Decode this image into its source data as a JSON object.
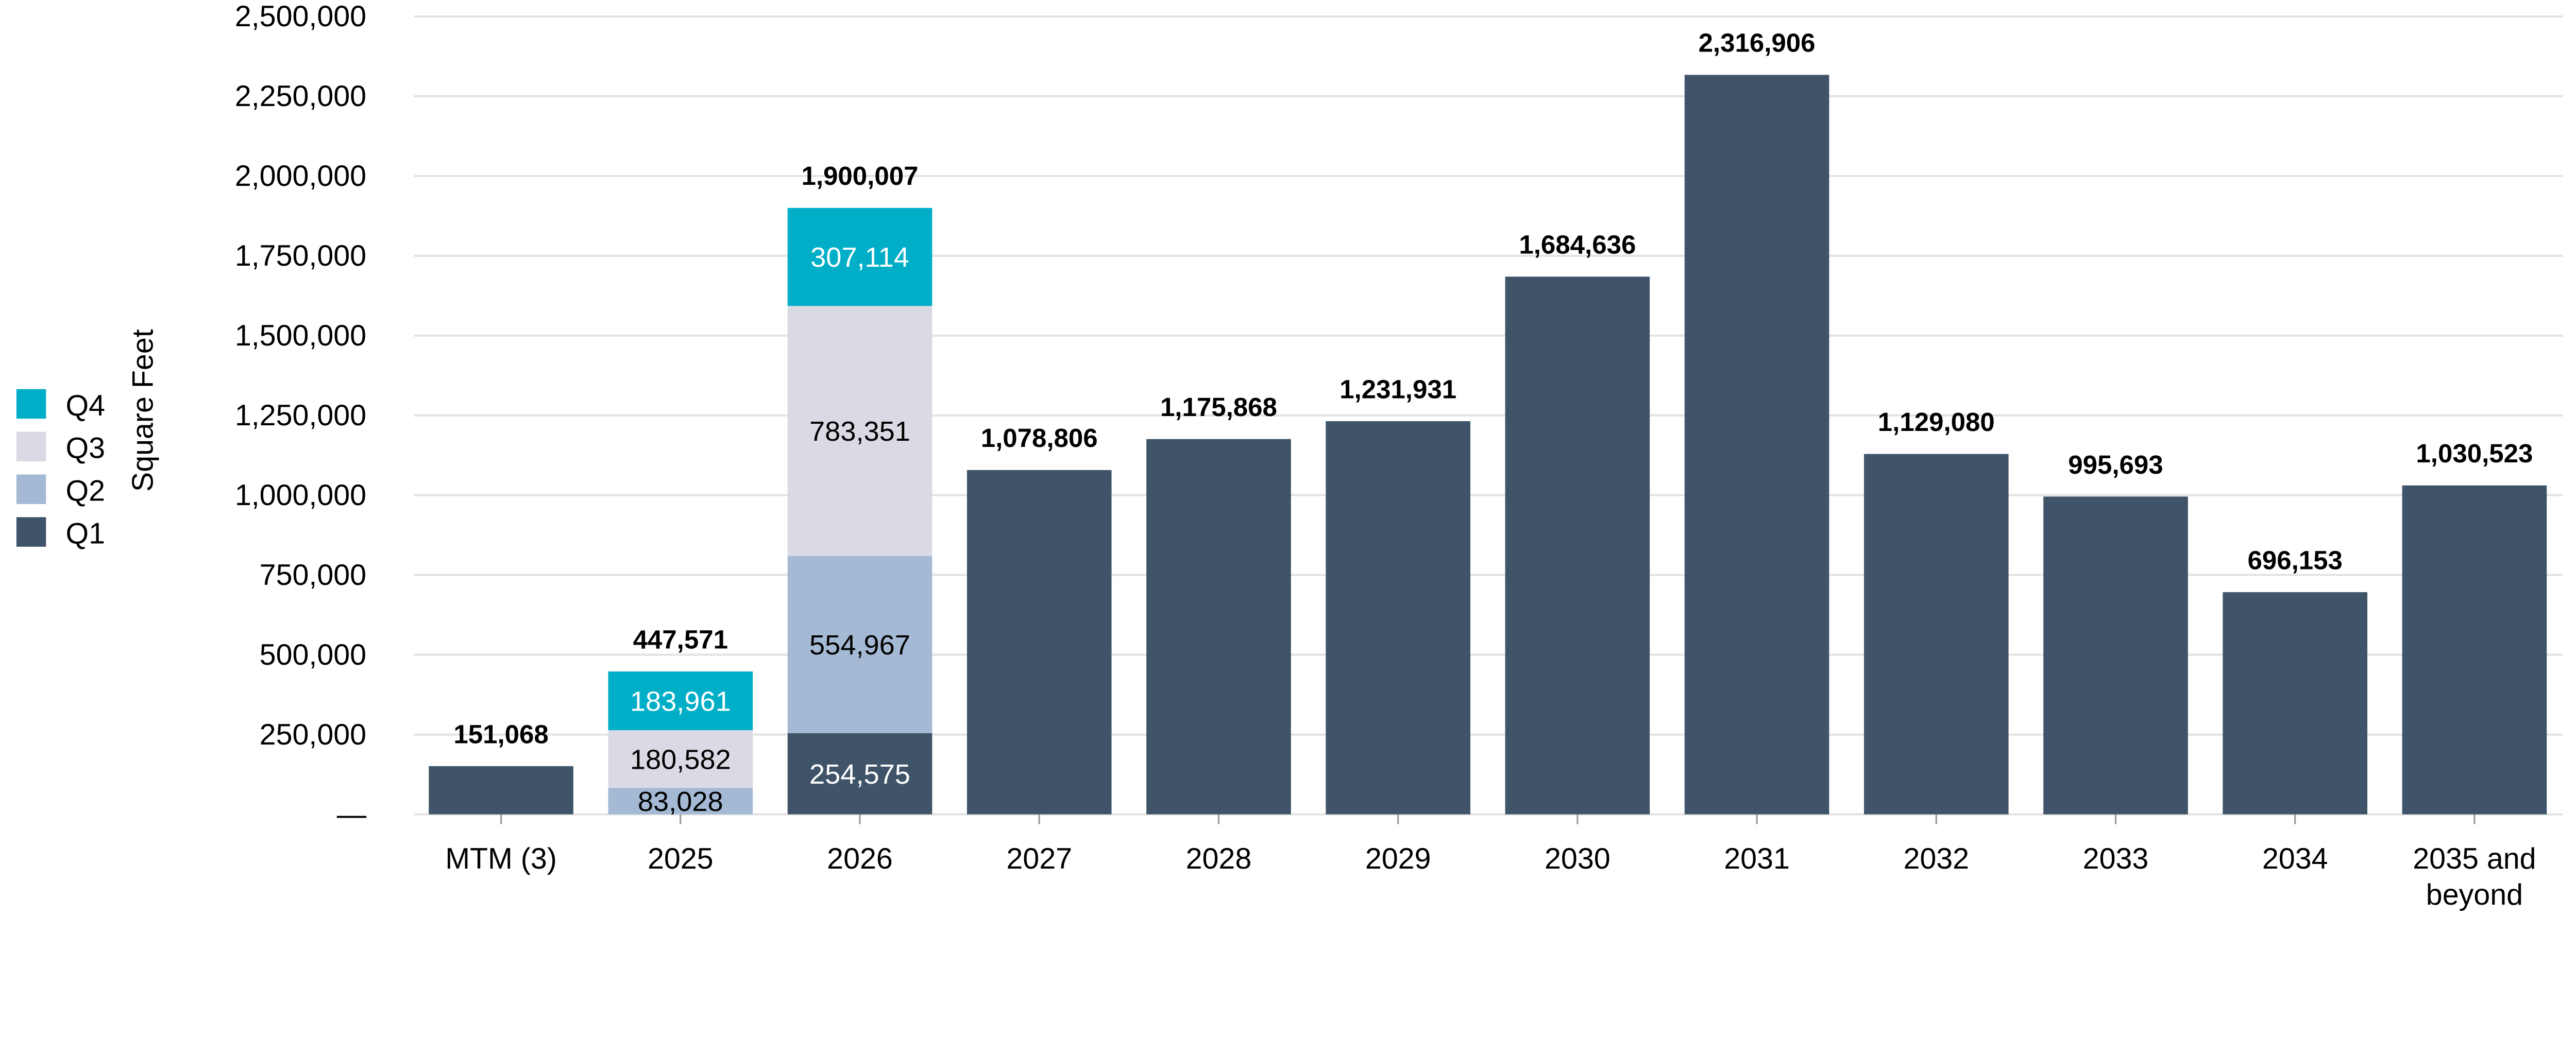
{
  "chart_data": {
    "type": "bar",
    "stacked": true,
    "title": "",
    "xlabel": "",
    "ylabel": "Square Feet",
    "ylim": [
      0,
      2500000
    ],
    "yticks": [
      0,
      250000,
      500000,
      750000,
      1000000,
      1250000,
      1500000,
      1750000,
      2000000,
      2250000,
      2500000
    ],
    "ytick_labels": [
      "—",
      "250,000",
      "500,000",
      "750,000",
      "1,000,000",
      "1,250,000",
      "1,500,000",
      "1,750,000",
      "2,000,000",
      "2,250,000",
      "2,500,000"
    ],
    "grid": true,
    "legend_position": "left",
    "categories": [
      "MTM (3)",
      "2025",
      "2026",
      "2027",
      "2028",
      "2029",
      "2030",
      "2031",
      "2032",
      "2033",
      "2034",
      "2035 and beyond"
    ],
    "series": [
      {
        "name": "Q1",
        "color": "#3F5468",
        "label_color": "#FFFFFF",
        "values": [
          151068,
          0,
          254575,
          1078806,
          1175868,
          1231931,
          1684636,
          2316906,
          1129080,
          995693,
          696153,
          1030523
        ],
        "labels": [
          null,
          null,
          "254,575",
          null,
          null,
          null,
          null,
          null,
          null,
          null,
          null,
          null
        ]
      },
      {
        "name": "Q2",
        "color": "#A4B9D4",
        "label_color": "#000000",
        "values": [
          0,
          83028,
          554967,
          0,
          0,
          0,
          0,
          0,
          0,
          0,
          0,
          0
        ],
        "labels": [
          null,
          "83,028",
          "554,967",
          null,
          null,
          null,
          null,
          null,
          null,
          null,
          null,
          null
        ]
      },
      {
        "name": "Q3",
        "color": "#D9DAE4",
        "label_color": "#000000",
        "values": [
          0,
          180582,
          783351,
          0,
          0,
          0,
          0,
          0,
          0,
          0,
          0,
          0
        ],
        "labels": [
          null,
          "180,582",
          "783,351",
          null,
          null,
          null,
          null,
          null,
          null,
          null,
          null,
          null
        ]
      },
      {
        "name": "Q4",
        "color": "#00AEC7",
        "label_color": "#FFFFFF",
        "values": [
          0,
          183961,
          307114,
          0,
          0,
          0,
          0,
          0,
          0,
          0,
          0,
          0
        ],
        "labels": [
          null,
          "183,961",
          "307,114",
          null,
          null,
          null,
          null,
          null,
          null,
          null,
          null,
          null
        ]
      }
    ],
    "totals": [
      151068,
      447571,
      1900007,
      1078806,
      1175868,
      1231931,
      1684636,
      2316906,
      1129080,
      995693,
      696153,
      1030523
    ],
    "total_labels": [
      "151,068",
      "447,571",
      "1,900,007",
      "1,078,806",
      "1,175,868",
      "1,231,931",
      "1,684,636",
      "2,316,906",
      "1,129,080",
      "995,693",
      "696,153",
      "1,030,523"
    ],
    "legend_order": [
      "Q4",
      "Q3",
      "Q2",
      "Q1"
    ]
  }
}
